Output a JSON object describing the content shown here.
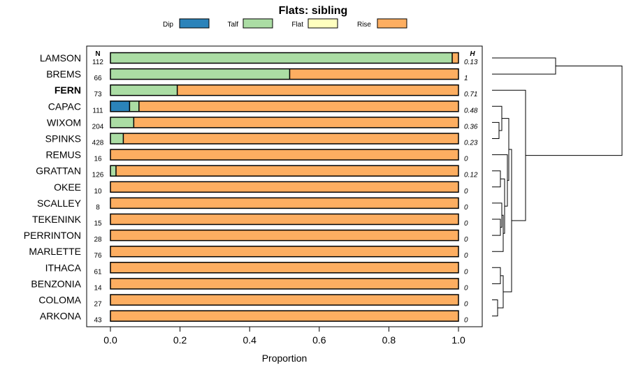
{
  "chart_data": {
    "type": "bar",
    "stacked": true,
    "orientation": "horizontal",
    "title": "Flats: sibling",
    "xlabel": "Proportion",
    "ylabel": "",
    "xlim": [
      0,
      1
    ],
    "xticks": [
      "0.0",
      "0.2",
      "0.4",
      "0.6",
      "0.8",
      "1.0"
    ],
    "n_header": "N",
    "h_header": "H",
    "legend": [
      {
        "name": "Dip",
        "color": "#2b83ba"
      },
      {
        "name": "Talf",
        "color": "#abdda4"
      },
      {
        "name": "Flat",
        "color": "#ffffbf"
      },
      {
        "name": "Rise",
        "color": "#fdae61"
      }
    ],
    "categories": [
      "LAMSON",
      "BREMS",
      "FERN",
      "CAPAC",
      "WIXOM",
      "SPINKS",
      "REMUS",
      "GRATTAN",
      "OKEE",
      "SCALLEY",
      "TEKENINK",
      "PERRINTON",
      "MARLETTE",
      "ITHACA",
      "BENZONIA",
      "COLOMA",
      "ARKONA"
    ],
    "highlighted": "FERN",
    "n": [
      "112",
      "66",
      "73",
      "111",
      "204",
      "428",
      "16",
      "126",
      "10",
      "8",
      "15",
      "28",
      "76",
      "61",
      "14",
      "27",
      "43"
    ],
    "h": [
      "0.13",
      "1",
      "0.71",
      "0.48",
      "0.36",
      "0.23",
      "0",
      "0.12",
      "0",
      "0",
      "0",
      "0",
      "0",
      "0",
      "0",
      "0",
      "0"
    ],
    "series": [
      {
        "name": "Dip",
        "values": [
          0,
          0,
          0,
          0.055,
          0,
          0,
          0,
          0,
          0,
          0,
          0,
          0,
          0,
          0,
          0,
          0,
          0
        ]
      },
      {
        "name": "Talf",
        "values": [
          0.982,
          0.515,
          0.192,
          0.027,
          0.067,
          0.037,
          0,
          0.016,
          0,
          0,
          0,
          0,
          0,
          0,
          0,
          0,
          0
        ]
      },
      {
        "name": "Flat",
        "values": [
          0,
          0,
          0,
          0,
          0,
          0,
          0,
          0,
          0,
          0,
          0,
          0,
          0,
          0,
          0,
          0,
          0
        ]
      },
      {
        "name": "Rise",
        "values": [
          0.018,
          0.485,
          0.808,
          0.918,
          0.933,
          0.963,
          1,
          0.984,
          1,
          1,
          1,
          1,
          1,
          1,
          1,
          1,
          1
        ]
      }
    ]
  }
}
